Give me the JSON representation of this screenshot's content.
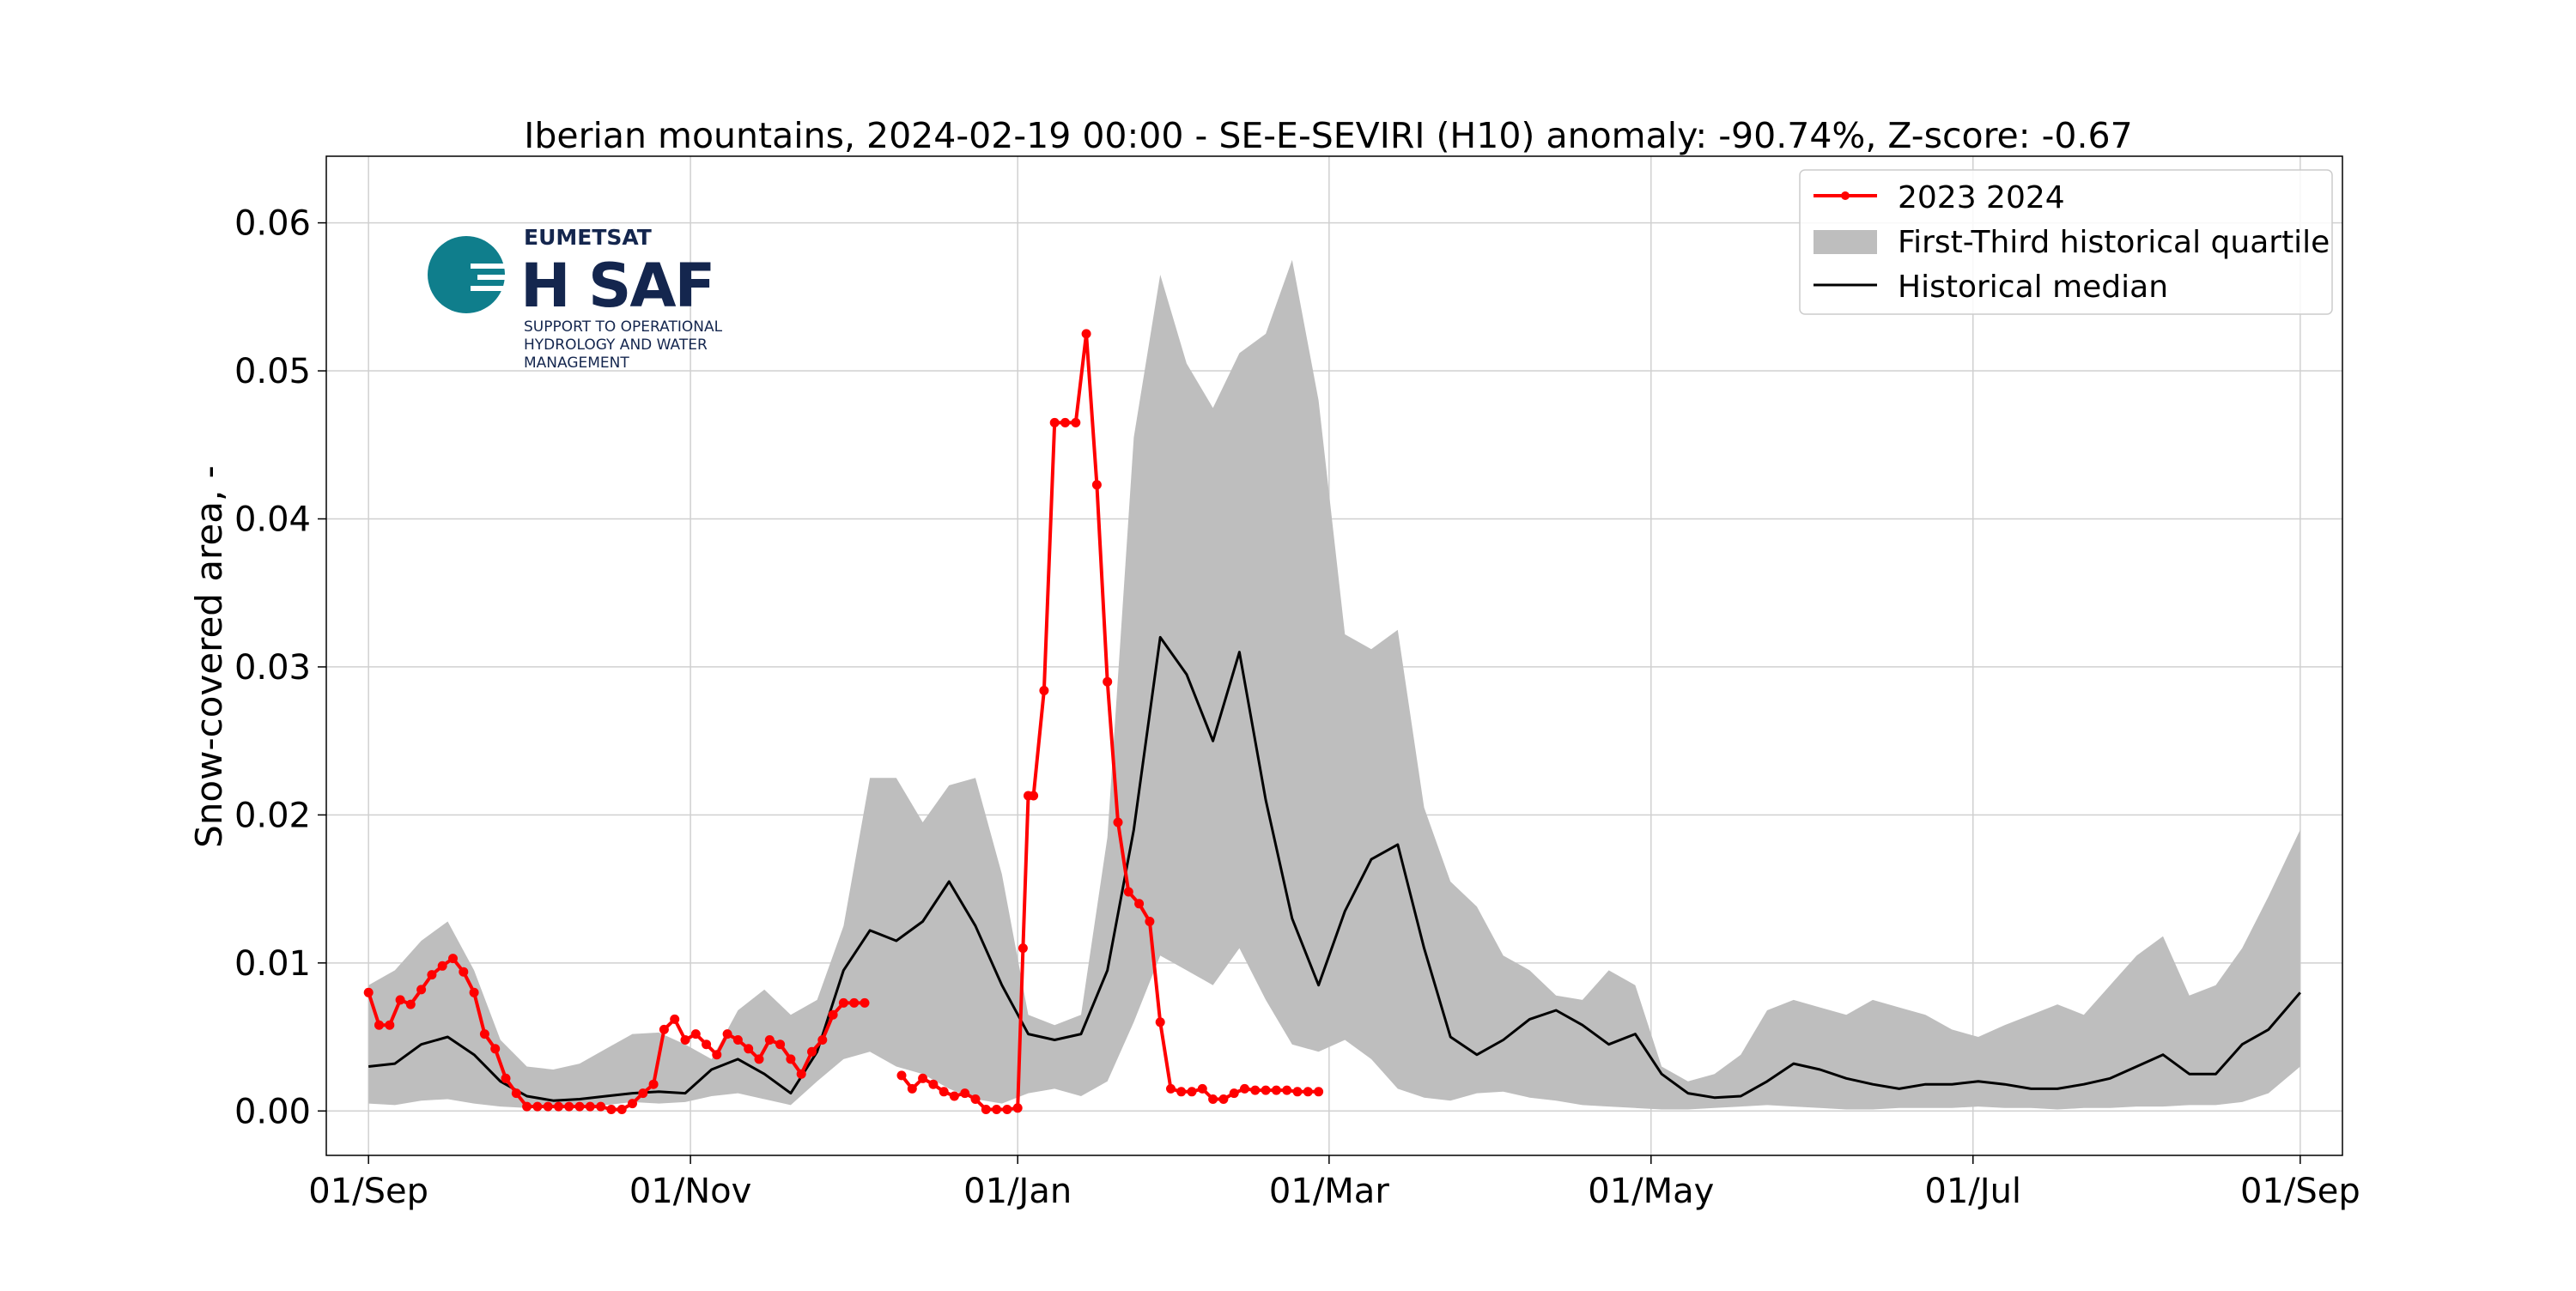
{
  "chart_data": {
    "type": "line",
    "title": "Iberian mountains, 2024-02-19 00:00 - SE-E-SEVIRI (H10) anomaly: -90.74%, Z-score: -0.67",
    "xlabel": "",
    "ylabel": "Snow-covered area, -",
    "xlim": [
      -8,
      374
    ],
    "ylim": [
      -0.003,
      0.0645
    ],
    "grid": true,
    "legend_position": "upper right",
    "x_ticks": [
      {
        "label": "01/Sep",
        "day": 0
      },
      {
        "label": "01/Nov",
        "day": 61
      },
      {
        "label": "01/Jan",
        "day": 123
      },
      {
        "label": "01/Mar",
        "day": 182
      },
      {
        "label": "01/May",
        "day": 243
      },
      {
        "label": "01/Jul",
        "day": 304
      },
      {
        "label": "01/Sep",
        "day": 366
      }
    ],
    "y_ticks": [
      {
        "label": "0.00",
        "value": 0.0
      },
      {
        "label": "0.01",
        "value": 0.01
      },
      {
        "label": "0.02",
        "value": 0.02
      },
      {
        "label": "0.03",
        "value": 0.03
      },
      {
        "label": "0.04",
        "value": 0.04
      },
      {
        "label": "0.05",
        "value": 0.05
      },
      {
        "label": "0.06",
        "value": 0.06
      }
    ],
    "series": [
      {
        "name": "2023 2024",
        "kind": "line-markers",
        "color": "#ff0000",
        "segments": [
          {
            "x": [
              0,
              2,
              4,
              6,
              8,
              10,
              12,
              14,
              16,
              18,
              20,
              22,
              24,
              26,
              28,
              30,
              32,
              34,
              36,
              38,
              40,
              42,
              44,
              46,
              48,
              50,
              52,
              54,
              56,
              58,
              60,
              62,
              64,
              66,
              68,
              70,
              72,
              74,
              76,
              78,
              80,
              82,
              84,
              86,
              88,
              90,
              92,
              94
            ],
            "y": [
              0.008,
              0.0058,
              0.0058,
              0.0075,
              0.0072,
              0.0082,
              0.0092,
              0.0098,
              0.0103,
              0.0094,
              0.008,
              0.0052,
              0.0042,
              0.0022,
              0.0012,
              0.0003,
              0.0003,
              0.0003,
              0.0003,
              0.0003,
              0.0003,
              0.0003,
              0.0003,
              0.0001,
              0.0001,
              0.0005,
              0.0012,
              0.0018,
              0.0055,
              0.0062,
              0.0048,
              0.0052,
              0.0045,
              0.0038,
              0.0052,
              0.0048,
              0.0042,
              0.0035,
              0.0048,
              0.0045,
              0.0035,
              0.0025,
              0.004,
              0.0048,
              0.0065,
              0.0073,
              0.0073,
              0.0073
            ]
          },
          {
            "x": [
              101,
              103,
              105,
              107,
              109,
              111,
              113,
              115,
              117,
              119,
              121,
              123,
              124,
              125,
              126,
              128,
              130,
              132,
              134,
              136,
              138,
              140,
              142,
              144,
              146,
              148,
              150,
              152,
              154,
              156,
              158,
              160,
              162,
              164,
              166,
              168,
              170,
              172,
              174,
              176,
              178,
              180
            ],
            "y": [
              0.0024,
              0.0015,
              0.0022,
              0.0018,
              0.0013,
              0.001,
              0.0012,
              0.0008,
              0.0001,
              0.0001,
              0.0001,
              0.0002,
              0.011,
              0.0213,
              0.0213,
              0.0284,
              0.0465,
              0.0465,
              0.0465,
              0.0525,
              0.0423,
              0.029,
              0.0195,
              0.0148,
              0.014,
              0.0128,
              0.006,
              0.0015,
              0.0013,
              0.0013,
              0.0015,
              0.0008,
              0.0008,
              0.0012,
              0.0015,
              0.0014,
              0.0014,
              0.0014,
              0.0014,
              0.0013,
              0.0013,
              0.0013
            ]
          }
        ]
      },
      {
        "name": "First-Third historical quartile",
        "kind": "band",
        "color": "#bebebe",
        "x": [
          0,
          5,
          10,
          15,
          20,
          25,
          30,
          35,
          40,
          45,
          50,
          55,
          60,
          65,
          70,
          75,
          80,
          85,
          90,
          95,
          100,
          105,
          110,
          115,
          120,
          125,
          130,
          135,
          140,
          145,
          150,
          155,
          160,
          165,
          170,
          175,
          180,
          185,
          190,
          195,
          200,
          205,
          210,
          215,
          220,
          225,
          230,
          235,
          240,
          245,
          250,
          255,
          260,
          265,
          270,
          275,
          280,
          285,
          290,
          295,
          300,
          305,
          310,
          315,
          320,
          325,
          330,
          335,
          340,
          345,
          350,
          355,
          360,
          366
        ],
        "lower": [
          0.0005,
          0.0004,
          0.0007,
          0.0008,
          0.0005,
          0.0003,
          0.0002,
          0.0002,
          0.0003,
          0.0004,
          0.0006,
          0.0005,
          0.0006,
          0.001,
          0.0012,
          0.0008,
          0.0004,
          0.002,
          0.0035,
          0.004,
          0.003,
          0.0025,
          0.0015,
          0.0008,
          0.0005,
          0.0012,
          0.0015,
          0.001,
          0.002,
          0.006,
          0.0105,
          0.0095,
          0.0085,
          0.011,
          0.0075,
          0.0045,
          0.004,
          0.0048,
          0.0035,
          0.0015,
          0.0009,
          0.0007,
          0.0012,
          0.0013,
          0.0009,
          0.0007,
          0.0004,
          0.0003,
          0.0002,
          0.0001,
          0.0001,
          0.0002,
          0.0003,
          0.0004,
          0.0003,
          0.0002,
          0.0001,
          0.0001,
          0.0002,
          0.0002,
          0.0002,
          0.0003,
          0.0002,
          0.0002,
          0.0001,
          0.0002,
          0.0002,
          0.0003,
          0.0003,
          0.0004,
          0.0004,
          0.0006,
          0.0012,
          0.003
        ],
        "upper": [
          0.0085,
          0.0095,
          0.0115,
          0.0128,
          0.0095,
          0.0048,
          0.003,
          0.0028,
          0.0032,
          0.0042,
          0.0052,
          0.0053,
          0.0045,
          0.0035,
          0.0068,
          0.0082,
          0.0065,
          0.0075,
          0.0125,
          0.0225,
          0.0225,
          0.0195,
          0.022,
          0.0225,
          0.016,
          0.0065,
          0.0058,
          0.0065,
          0.0185,
          0.0455,
          0.0565,
          0.0505,
          0.0475,
          0.0512,
          0.0525,
          0.0575,
          0.048,
          0.0322,
          0.0312,
          0.0325,
          0.0205,
          0.0155,
          0.0138,
          0.0105,
          0.0095,
          0.0078,
          0.0075,
          0.0095,
          0.0085,
          0.003,
          0.002,
          0.0025,
          0.0038,
          0.0068,
          0.0075,
          0.007,
          0.0065,
          0.0075,
          0.007,
          0.0065,
          0.0055,
          0.005,
          0.0058,
          0.0065,
          0.0072,
          0.0065,
          0.0085,
          0.0105,
          0.0118,
          0.0078,
          0.0085,
          0.011,
          0.0145,
          0.019
        ]
      },
      {
        "name": "Historical median",
        "kind": "line",
        "color": "#000000",
        "x": [
          0,
          5,
          10,
          15,
          20,
          25,
          30,
          35,
          40,
          45,
          50,
          55,
          60,
          65,
          70,
          75,
          80,
          85,
          90,
          95,
          100,
          105,
          110,
          115,
          120,
          125,
          130,
          135,
          140,
          145,
          150,
          155,
          160,
          165,
          170,
          175,
          180,
          185,
          190,
          195,
          200,
          205,
          210,
          215,
          220,
          225,
          230,
          235,
          240,
          245,
          250,
          255,
          260,
          265,
          270,
          275,
          280,
          285,
          290,
          295,
          300,
          305,
          310,
          315,
          320,
          325,
          330,
          335,
          340,
          345,
          350,
          355,
          360,
          366
        ],
        "y": [
          0.003,
          0.0032,
          0.0045,
          0.005,
          0.0038,
          0.002,
          0.001,
          0.0007,
          0.0008,
          0.001,
          0.0012,
          0.0013,
          0.0012,
          0.0028,
          0.0035,
          0.0025,
          0.0012,
          0.004,
          0.0095,
          0.0122,
          0.0115,
          0.0128,
          0.0155,
          0.0125,
          0.0085,
          0.0052,
          0.0048,
          0.0052,
          0.0095,
          0.019,
          0.032,
          0.0295,
          0.025,
          0.031,
          0.021,
          0.013,
          0.0085,
          0.0135,
          0.017,
          0.018,
          0.011,
          0.005,
          0.0038,
          0.0048,
          0.0062,
          0.0068,
          0.0058,
          0.0045,
          0.0052,
          0.0025,
          0.0012,
          0.0009,
          0.001,
          0.002,
          0.0032,
          0.0028,
          0.0022,
          0.0018,
          0.0015,
          0.0018,
          0.0018,
          0.002,
          0.0018,
          0.0015,
          0.0015,
          0.0018,
          0.0022,
          0.003,
          0.0038,
          0.0025,
          0.0025,
          0.0045,
          0.0055,
          0.008
        ]
      }
    ]
  },
  "logo": {
    "org": "EUMETSAT",
    "brand": "H SAF",
    "tagline_lines": [
      "SUPPORT TO OPERATIONAL",
      "HYDROLOGY AND WATER",
      "MANAGEMENT"
    ],
    "colors": {
      "teal": "#0f7e8c",
      "navy": "#14264e"
    }
  },
  "style": {
    "grid_color": "#d0d0d0",
    "axis_color": "#000000"
  }
}
